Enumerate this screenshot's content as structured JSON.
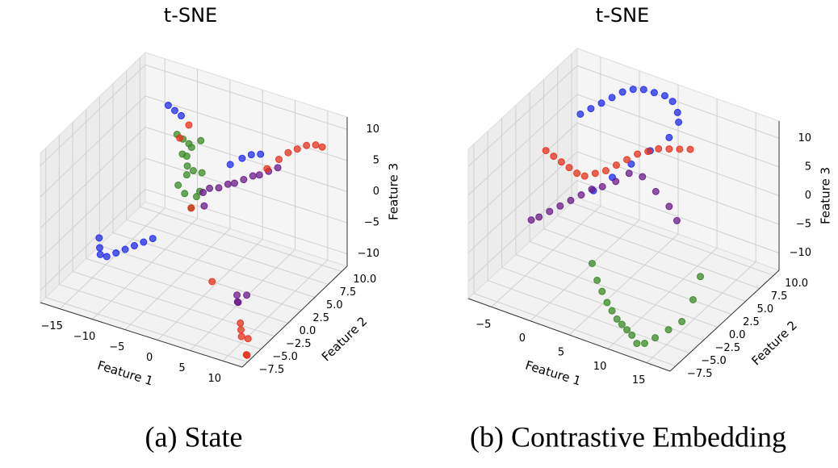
{
  "chart_data": [
    {
      "type": "scatter3d",
      "title": "t-SNE",
      "caption": "(a) State",
      "xlabel": "Feature 1",
      "ylabel": "Feature 2",
      "zlabel": "Feature 3",
      "xlim": [
        -18,
        13
      ],
      "ylim": [
        -8.5,
        11
      ],
      "zlim": [
        -12,
        12
      ],
      "xticks": [
        {
          "value": -15,
          "label": "−15"
        },
        {
          "value": -10,
          "label": "−10"
        },
        {
          "value": -5,
          "label": "−5"
        },
        0,
        5,
        10
      ],
      "yticks": [
        {
          "value": -7.5,
          "label": "−7.5"
        },
        {
          "value": -5,
          "label": "−5.0"
        },
        {
          "value": -2.5,
          "label": "−2.5"
        },
        {
          "value": 0,
          "label": "0.0"
        },
        {
          "value": 2.5,
          "label": "2.5"
        },
        {
          "value": 5,
          "label": "5.0"
        },
        {
          "value": 7.5,
          "label": "7.5"
        },
        {
          "value": 10,
          "label": "10.0"
        }
      ],
      "zticks": [
        {
          "value": -10,
          "label": "−10"
        },
        {
          "value": -5,
          "label": "−5"
        },
        0,
        5,
        10
      ],
      "series": [
        {
          "color": "#1f2bef",
          "x": [
            -16,
            -15.5,
            -15,
            -14,
            -13,
            -12,
            -11,
            -10,
            -9,
            -12,
            -11,
            -10,
            0,
            1,
            2,
            3
          ],
          "y": [
            0,
            -0.5,
            -1,
            -1,
            -0.5,
            0,
            0.5,
            1,
            1.5,
            8,
            8,
            8,
            5,
            6,
            6.5,
            7
          ],
          "z": [
            -8,
            -9,
            -9.5,
            -9.5,
            -9,
            -8.5,
            -8,
            -7.5,
            -7,
            8,
            7.5,
            7,
            5,
            5.5,
            6,
            6
          ]
        },
        {
          "color": "#3a8a27",
          "x": [
            -9,
            -8.5,
            -8,
            -7.5,
            -7,
            -6.5,
            -6,
            -8,
            -7,
            -6,
            -9,
            -8,
            -7,
            -5.5,
            -6,
            -7.5
          ],
          "y": [
            6,
            6.5,
            7,
            6,
            5.5,
            6,
            7,
            5,
            5,
            6,
            7,
            7.5,
            8,
            6,
            5,
            6
          ],
          "z": [
            6,
            5,
            4,
            3,
            2,
            1,
            0,
            -1,
            -2,
            -3,
            2,
            3,
            4,
            -2,
            -4,
            0
          ]
        },
        {
          "color": "#6a1b8a",
          "x": [
            -4,
            -3,
            -2,
            -1,
            0,
            1,
            2,
            3,
            4,
            -5,
            -4,
            6,
            6.5,
            7,
            7.5
          ],
          "y": [
            6,
            6.5,
            7,
            7,
            7.5,
            8,
            8,
            8.5,
            9,
            6,
            5,
            -1,
            -1.5,
            -2,
            -1
          ],
          "z": [
            -1,
            -1,
            -0.5,
            0,
            0.5,
            1,
            1.5,
            2,
            2.5,
            -2,
            -3,
            -9,
            -9.5,
            -9,
            -8.5
          ]
        },
        {
          "color": "#e8301b",
          "x": [
            4,
            5,
            6,
            7,
            8,
            9,
            10,
            -8,
            -9,
            -6,
            3,
            9,
            9.5,
            10,
            11,
            12,
            12.5
          ],
          "y": [
            7,
            8,
            8.5,
            9,
            9.5,
            10,
            10,
            7,
            6.5,
            5,
            -2,
            -4,
            -4.5,
            -5,
            -5,
            -6.5,
            -7
          ],
          "z": [
            4,
            5,
            6,
            6.5,
            7,
            7,
            7,
            7,
            5,
            -4,
            -7,
            -10,
            -10.5,
            -11,
            -11,
            -12,
            -11.5
          ]
        }
      ]
    },
    {
      "type": "scatter3d",
      "title": "t-SNE",
      "caption": "(b) Contrastive Embedding",
      "xlabel": "Feature 1",
      "ylabel": "Feature 2",
      "zlabel": "Feature 3",
      "xlim": [
        -8,
        18
      ],
      "ylim": [
        -8.5,
        11
      ],
      "zlim": [
        -13,
        13
      ],
      "xticks": [
        {
          "value": -5,
          "label": "−5"
        },
        0,
        5,
        10,
        15
      ],
      "yticks": [
        {
          "value": -7.5,
          "label": "−7.5"
        },
        {
          "value": -5,
          "label": "−5.0"
        },
        {
          "value": -2.5,
          "label": "−2.5"
        },
        {
          "value": 0,
          "label": "0.0"
        },
        {
          "value": 2.5,
          "label": "2.5"
        },
        {
          "value": 5,
          "label": "5.0"
        },
        {
          "value": 7.5,
          "label": "7.5"
        },
        {
          "value": 10,
          "label": "10.0"
        }
      ],
      "zticks": [
        {
          "value": -10,
          "label": "−10"
        },
        {
          "value": -5,
          "label": "−5"
        },
        0,
        5,
        10
      ],
      "series": [
        {
          "color": "#1f2bef",
          "x": [
            -4,
            -3,
            -2,
            -1,
            0,
            1,
            2,
            3,
            4,
            5,
            6,
            6.5,
            6,
            5,
            4,
            3,
            2
          ],
          "y": [
            6,
            6.5,
            7,
            7.5,
            8,
            8.5,
            9,
            9.5,
            10,
            10,
            9.5,
            9,
            8,
            6,
            4,
            2,
            0
          ],
          "z": [
            8,
            9,
            10,
            11,
            12,
            12.5,
            12.5,
            12,
            11.5,
            11,
            10,
            9,
            7,
            6,
            5,
            4,
            3
          ]
        },
        {
          "color": "#3a8a27",
          "x": [
            4,
            5,
            6,
            7,
            8,
            9,
            10,
            11,
            12,
            13,
            14,
            15,
            16,
            17,
            17,
            16.5
          ],
          "y": [
            -3,
            -3.5,
            -4,
            -4.5,
            -5,
            -5.5,
            -6,
            -6.5,
            -7,
            -7.5,
            -7.5,
            -7,
            -6,
            -5,
            -3,
            -1
          ],
          "z": [
            -6,
            -8,
            -9,
            -10,
            -10.5,
            -11,
            -11,
            -11,
            -11,
            -11.5,
            -11,
            -10,
            -9,
            -8,
            -6,
            -4
          ]
        },
        {
          "color": "#e8301b",
          "x": [
            -7,
            -6,
            -5,
            -4,
            -3,
            -2,
            -1,
            0,
            1,
            2,
            3,
            4,
            5,
            6,
            7,
            8
          ],
          "y": [
            4,
            4,
            4,
            4,
            4,
            4,
            4.5,
            5,
            5.5,
            6,
            6.5,
            7,
            7.5,
            8,
            8.5,
            9
          ],
          "z": [
            2,
            1.5,
            1,
            0.5,
            0,
            0,
            0.5,
            1,
            2,
            3,
            4,
            4.5,
            5,
            5,
            5,
            5
          ]
        },
        {
          "color": "#6a1b8a",
          "x": [
            -6,
            -5,
            -4,
            -3,
            -2,
            -1,
            0,
            1,
            2,
            3,
            4,
            5,
            6,
            7
          ],
          "y": [
            0,
            0,
            0.5,
            1,
            1.5,
            2,
            2.5,
            3,
            4,
            5,
            6,
            7,
            8,
            8
          ],
          "z": [
            -6,
            -5,
            -4,
            -3,
            -2,
            -1,
            0,
            0.5,
            1,
            2,
            1,
            -2,
            -5,
            -7
          ]
        }
      ]
    }
  ]
}
